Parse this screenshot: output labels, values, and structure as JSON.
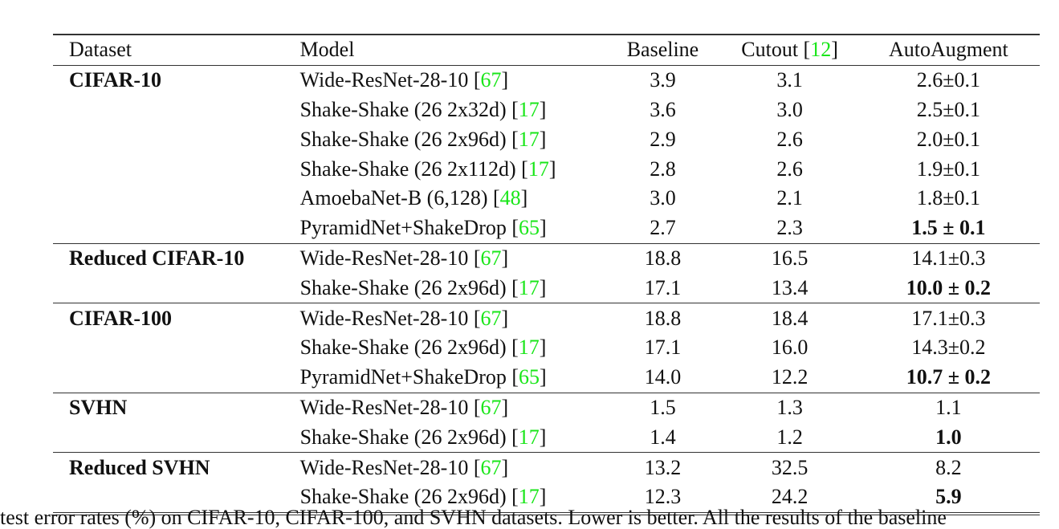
{
  "header": {
    "dataset": "Dataset",
    "model": "Model",
    "baseline": "Baseline",
    "cutout": "Cutout",
    "cutout_ref": "12",
    "autoaugment": "AutoAugment"
  },
  "groups": [
    {
      "dataset": "CIFAR-10",
      "rows": [
        {
          "model": "Wide-ResNet-28-10",
          "ref": "67",
          "baseline": "3.9",
          "cutout": "3.1",
          "auto": "2.6±0.1",
          "bold": false
        },
        {
          "model": "Shake-Shake (26 2x32d)",
          "ref": "17",
          "baseline": "3.6",
          "cutout": "3.0",
          "auto": "2.5±0.1",
          "bold": false
        },
        {
          "model": "Shake-Shake (26 2x96d)",
          "ref": "17",
          "baseline": "2.9",
          "cutout": "2.6",
          "auto": "2.0±0.1",
          "bold": false
        },
        {
          "model": "Shake-Shake (26 2x112d)",
          "ref": "17",
          "baseline": "2.8",
          "cutout": "2.6",
          "auto": "1.9±0.1",
          "bold": false
        },
        {
          "model": "AmoebaNet-B (6,128)",
          "ref": "48",
          "baseline": "3.0",
          "cutout": "2.1",
          "auto": "1.8±0.1",
          "bold": false
        },
        {
          "model": "PyramidNet+ShakeDrop",
          "ref": "65",
          "baseline": "2.7",
          "cutout": "2.3",
          "auto": "1.5 ± 0.1",
          "bold": true
        }
      ]
    },
    {
      "dataset": "Reduced CIFAR-10",
      "rows": [
        {
          "model": "Wide-ResNet-28-10",
          "ref": "67",
          "baseline": "18.8",
          "cutout": "16.5",
          "auto": "14.1±0.3",
          "bold": false
        },
        {
          "model": "Shake-Shake (26 2x96d)",
          "ref": "17",
          "baseline": "17.1",
          "cutout": "13.4",
          "auto": "10.0 ± 0.2",
          "bold": true
        }
      ]
    },
    {
      "dataset": "CIFAR-100",
      "rows": [
        {
          "model": "Wide-ResNet-28-10",
          "ref": "67",
          "baseline": "18.8",
          "cutout": "18.4",
          "auto": "17.1±0.3",
          "bold": false
        },
        {
          "model": "Shake-Shake (26 2x96d)",
          "ref": "17",
          "baseline": "17.1",
          "cutout": "16.0",
          "auto": "14.3±0.2",
          "bold": false
        },
        {
          "model": "PyramidNet+ShakeDrop",
          "ref": "65",
          "baseline": "14.0",
          "cutout": "12.2",
          "auto": "10.7 ± 0.2",
          "bold": true
        }
      ]
    },
    {
      "dataset": "SVHN",
      "rows": [
        {
          "model": "Wide-ResNet-28-10",
          "ref": "67",
          "baseline": "1.5",
          "cutout": "1.3",
          "auto": "1.1",
          "bold": false
        },
        {
          "model": "Shake-Shake (26 2x96d)",
          "ref": "17",
          "baseline": "1.4",
          "cutout": "1.2",
          "auto": "1.0",
          "bold": true
        }
      ]
    },
    {
      "dataset": "Reduced SVHN",
      "rows": [
        {
          "model": "Wide-ResNet-28-10",
          "ref": "67",
          "baseline": "13.2",
          "cutout": "32.5",
          "auto": "8.2",
          "bold": false
        },
        {
          "model": "Shake-Shake (26 2x96d)",
          "ref": "17",
          "baseline": "12.3",
          "cutout": "24.2",
          "auto": "5.9",
          "bold": true
        }
      ]
    }
  ],
  "caption": "test error rates (%) on CIFAR-10, CIFAR-100, and SVHN datasets. Lower is better. All the results of the baseline"
}
